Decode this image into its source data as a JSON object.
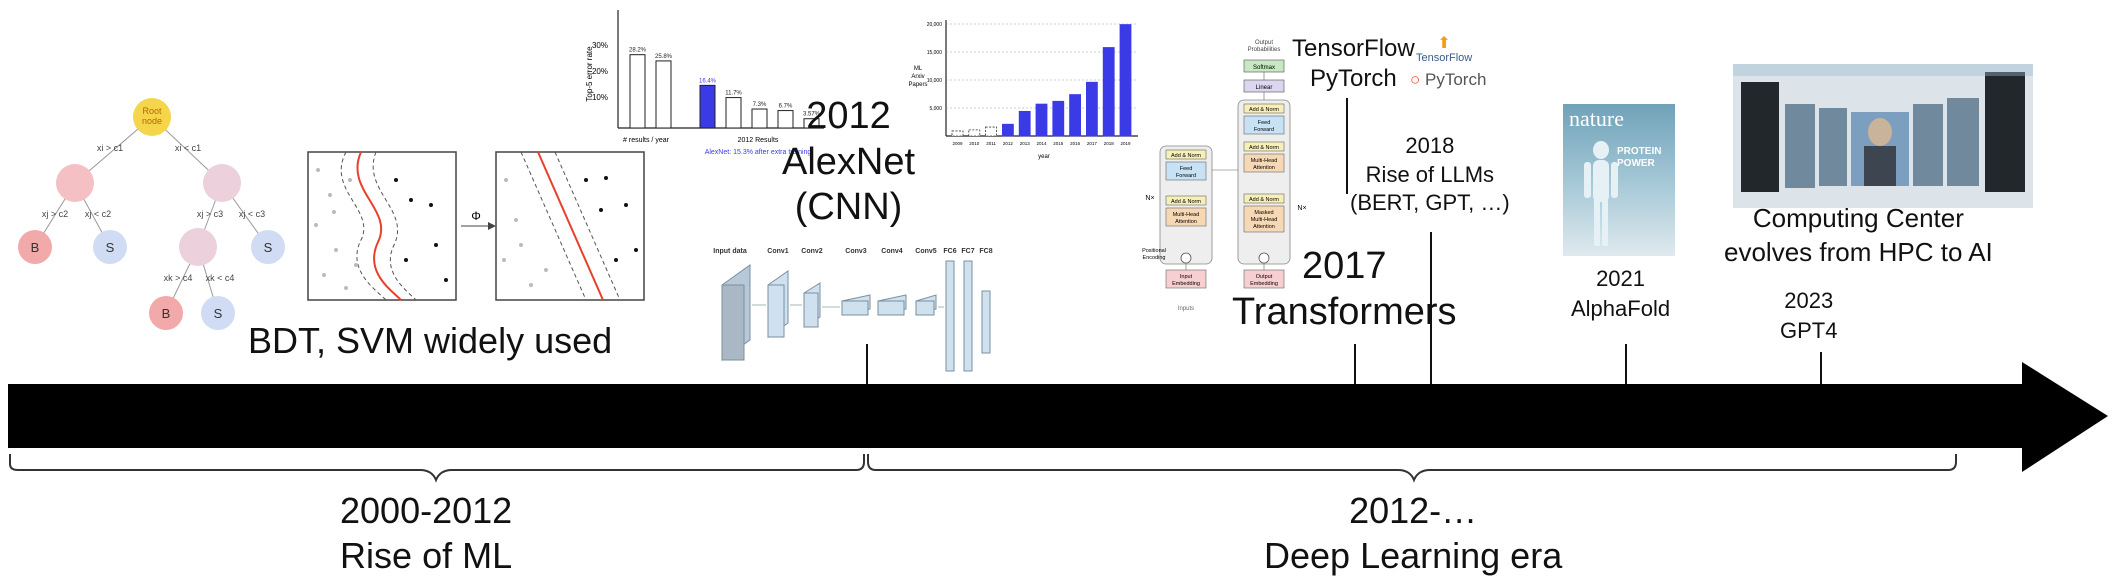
{
  "colors": {
    "arrow": "#000000",
    "tree_red": "#f2a9a9",
    "tree_blue": "#cfdcf3",
    "tree_root": "#f5d54a",
    "svm_curve": "#e8402a",
    "bar_blue": "#3a3ae6",
    "nature_bg": "#8fb9cc",
    "super_bg": "#d9e2ea"
  },
  "labels": {
    "bdt_svm": "BDT, SVM widely used",
    "alexnet": [
      "2012",
      "AlexNet",
      "(CNN)"
    ],
    "tensorflow": "TensorFlow",
    "pytorch": "PyTorch",
    "llm": [
      "2018",
      "Rise of LLMs",
      "(BERT, GPT, …)"
    ],
    "transformers": [
      "2017",
      "Transformers"
    ],
    "alphafold": [
      "2021",
      "AlphaFold"
    ],
    "computing": [
      "Computing Center",
      "evolves from HPC to AI"
    ],
    "gpt4": [
      "2023",
      "GPT4"
    ]
  },
  "eras": [
    {
      "years": "2000-2012",
      "name": "Rise of ML"
    },
    {
      "years": "2012-…",
      "name": "Deep Learning era"
    }
  ],
  "tree": {
    "root": "Root node",
    "c1a": "xi > c1",
    "c1b": "xi < c1",
    "c2a": "xj > c2",
    "c2b": "xj < c2",
    "c3a": "xj > c3",
    "c3b": "xj < c3",
    "c4a": "xk > c4",
    "c4b": "xk < c4",
    "leaf_b": "B",
    "leaf_s": "S"
  },
  "svm": {
    "phi": "Φ"
  },
  "imagenet": {
    "bar_values": [
      28.2,
      25.8,
      16.4,
      11.7,
      7.3,
      6.7,
      3.57
    ],
    "value_labels": [
      "28.2%",
      "25.8%",
      "16.4%",
      "11.7%",
      "7.3%",
      "6.7%",
      "3.57%"
    ],
    "tick_labels": [
      "30%",
      "20%",
      "10%"
    ],
    "ylabel": "Top-5 error rate",
    "xlabel1": "# results / year",
    "xlabel2": "2012 Results",
    "note": "AlexNet: 15.3% after extra training"
  },
  "arxiv": {
    "years": [
      "2009",
      "2010",
      "2011",
      "2012",
      "2013",
      "2014",
      "2015",
      "2016",
      "2017",
      "2018",
      "2019"
    ],
    "values": [
      900,
      1100,
      1600,
      2100,
      4400,
      5700,
      6200,
      7400,
      9600,
      15800,
      19900
    ],
    "yticks": [
      "20,000",
      "15,000",
      "10,000",
      "5,000"
    ],
    "ylabel": [
      "ML",
      "Arxiv",
      "Papers"
    ],
    "xlabel": "year"
  },
  "alexnet_arch": {
    "layers": [
      "Input data",
      "Conv1",
      "Conv2",
      "Conv3",
      "Conv4",
      "Conv5",
      "FC6",
      "FC7",
      "FC8"
    ]
  },
  "transformer_arch": {
    "out_prob": [
      "Output",
      "Probabilities"
    ],
    "softmax": "Softmax",
    "linear": "Linear",
    "add_norm": "Add & Norm",
    "ff": [
      "Feed",
      "Forward"
    ],
    "mha": [
      "Multi-Head",
      "Attention"
    ],
    "masked_mha": [
      "Masked",
      "Multi-Head",
      "Attention"
    ],
    "nx": "N×",
    "pos_enc": [
      "Positional",
      "Encoding"
    ],
    "input_emb": [
      "Input",
      "Embedding"
    ],
    "output_emb": [
      "Output",
      "Embedding"
    ],
    "inputs": "Inputs"
  },
  "logos": {
    "tf_small": "TensorFlow",
    "pt_small": "PyTorch"
  },
  "nature": {
    "title": "nature",
    "headline": [
      "PROTEIN",
      "POWER"
    ]
  }
}
